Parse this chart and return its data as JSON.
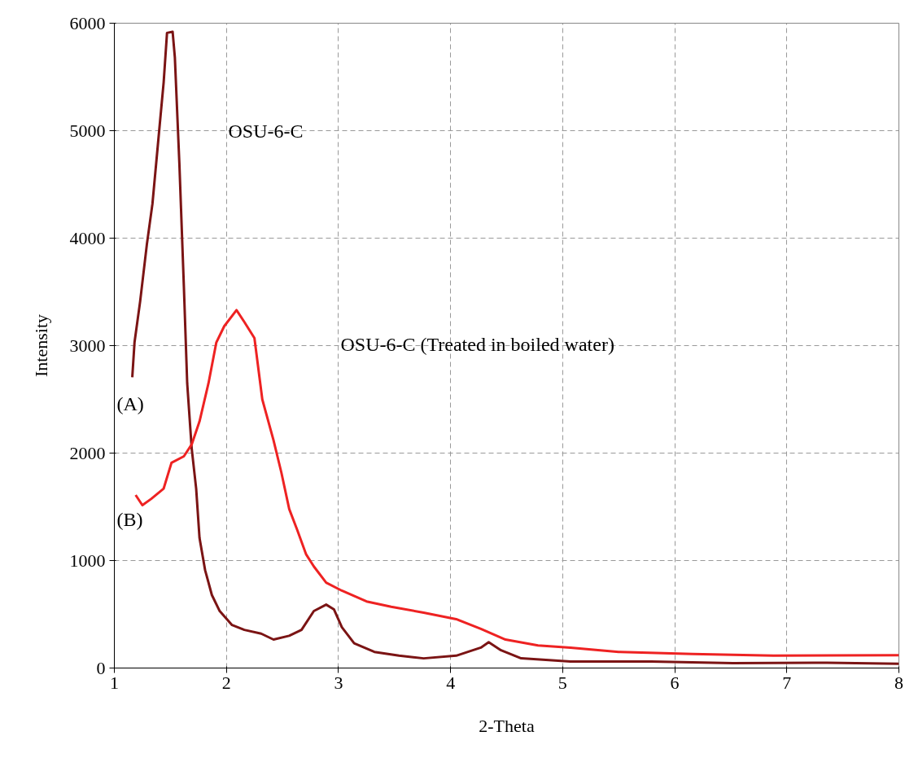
{
  "chart_data": {
    "type": "line",
    "xlabel": "2-Theta",
    "ylabel": "Intensity",
    "xlim": [
      1,
      8
    ],
    "xticks": [
      1,
      2,
      3,
      4,
      5,
      6,
      7,
      8
    ],
    "ylim": [
      0,
      6000
    ],
    "yticks": [
      0,
      1000,
      2000,
      3000,
      4000,
      5000,
      6000
    ],
    "grid": true,
    "marker": "none",
    "line_style": "solid",
    "series": [
      {
        "color": "#7b1414",
        "x": [
          1.16,
          1.18,
          1.23,
          1.29,
          1.34,
          1.4,
          1.44,
          1.47,
          1.52,
          1.54,
          1.58,
          1.62,
          1.65,
          1.69,
          1.73,
          1.76,
          1.81,
          1.87,
          1.94,
          2.05,
          2.16,
          2.31,
          2.42,
          2.56,
          2.67,
          2.78,
          2.89,
          2.96,
          3.03,
          3.14,
          3.32,
          3.54,
          3.76,
          4.05,
          4.27,
          4.34,
          4.45,
          4.63,
          5.07,
          5.79,
          6.52,
          7.25,
          8.0
        ],
        "values": [
          2705,
          3030,
          3410,
          3940,
          4320,
          5000,
          5450,
          5910,
          5920,
          5680,
          4700,
          3560,
          2650,
          2045,
          1670,
          1210,
          910,
          680,
          530,
          400,
          355,
          320,
          265,
          300,
          355,
          530,
          590,
          545,
          380,
          230,
          150,
          115,
          90,
          115,
          190,
          240,
          165,
          90,
          60,
          60,
          45,
          50,
          40
        ]
      },
      {
        "color": "#ee2222",
        "x": [
          1.19,
          1.25,
          1.33,
          1.44,
          1.51,
          1.62,
          1.69,
          1.76,
          1.84,
          1.91,
          1.98,
          2.09,
          2.16,
          2.25,
          2.32,
          2.42,
          2.49,
          2.56,
          2.63,
          2.71,
          2.78,
          2.89,
          3.03,
          3.25,
          3.47,
          3.76,
          4.05,
          4.27,
          4.49,
          4.78,
          5.07,
          5.5,
          6.16,
          6.88,
          8.0
        ],
        "values": [
          1610,
          1515,
          1575,
          1670,
          1910,
          1970,
          2080,
          2295,
          2650,
          3030,
          3180,
          3330,
          3220,
          3070,
          2500,
          2120,
          1820,
          1480,
          1290,
          1060,
          945,
          795,
          720,
          620,
          570,
          515,
          455,
          365,
          265,
          210,
          190,
          150,
          130,
          115,
          120
        ]
      }
    ],
    "annotations": [
      "OSU-6-C",
      "OSU-6-C (Treated in boiled water)",
      "(A)",
      "(B)"
    ]
  }
}
